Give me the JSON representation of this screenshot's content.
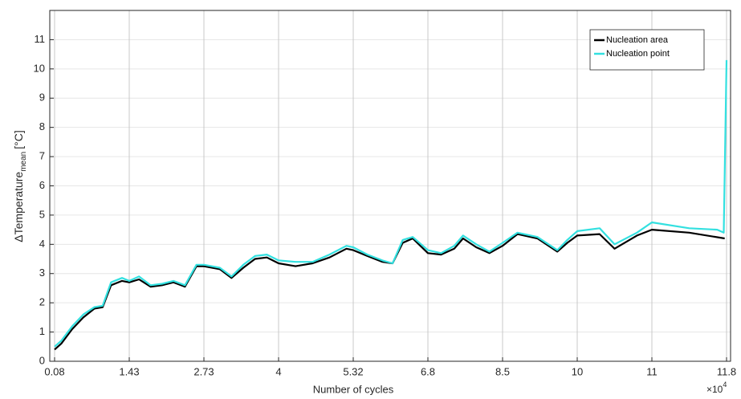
{
  "chart_data": {
    "type": "line",
    "xlabel": "Number of cycles",
    "x_multiplier": {
      "base": "×10",
      "exponent": "4"
    },
    "ylabel": {
      "text": "ΔTemperature",
      "subscript": "mean",
      "unit": "[°C]"
    },
    "xlim": [
      0.08,
      11.8
    ],
    "xticks": [
      0.08,
      1.43,
      2.73,
      4,
      5.32,
      6.8,
      8.5,
      10,
      11,
      11.8
    ],
    "x_scale": "piecewise-even-ticks",
    "ylim": [
      0,
      12
    ],
    "yticks": [
      0,
      1,
      2,
      3,
      4,
      5,
      6,
      7,
      8,
      9,
      10,
      11
    ],
    "grid": true,
    "legend": "upper right",
    "series": [
      {
        "name": "Nucleation area",
        "color": "#000000",
        "x": [
          0.08,
          0.2,
          0.4,
          0.6,
          0.8,
          0.95,
          1.1,
          1.3,
          1.43,
          1.6,
          1.8,
          2.0,
          2.2,
          2.4,
          2.6,
          2.73,
          3.0,
          3.2,
          3.4,
          3.6,
          3.8,
          4.0,
          4.3,
          4.6,
          4.9,
          5.2,
          5.32,
          5.6,
          5.9,
          6.1,
          6.3,
          6.5,
          6.8,
          7.1,
          7.4,
          7.6,
          7.9,
          8.2,
          8.5,
          8.8,
          9.2,
          9.6,
          9.8,
          10.0,
          10.3,
          10.5,
          10.8,
          11.0,
          11.4,
          11.78
        ],
        "values": [
          0.4,
          0.6,
          1.1,
          1.5,
          1.8,
          1.85,
          2.6,
          2.75,
          2.7,
          2.8,
          2.55,
          2.6,
          2.7,
          2.55,
          3.25,
          3.25,
          3.15,
          2.85,
          3.2,
          3.5,
          3.55,
          3.35,
          3.25,
          3.35,
          3.55,
          3.85,
          3.8,
          3.6,
          3.4,
          3.35,
          4.05,
          4.2,
          3.7,
          3.65,
          3.85,
          4.2,
          3.9,
          3.7,
          3.95,
          4.35,
          4.2,
          3.75,
          4.05,
          4.3,
          4.35,
          3.85,
          4.3,
          4.5,
          4.4,
          4.2
        ]
      },
      {
        "name": "Nucleation point",
        "color": "#33e0e0",
        "x": [
          0.08,
          0.2,
          0.4,
          0.6,
          0.8,
          0.95,
          1.1,
          1.3,
          1.43,
          1.6,
          1.8,
          2.0,
          2.2,
          2.4,
          2.6,
          2.73,
          3.0,
          3.2,
          3.4,
          3.6,
          3.8,
          4.0,
          4.3,
          4.6,
          4.9,
          5.2,
          5.32,
          5.6,
          5.9,
          6.1,
          6.3,
          6.5,
          6.8,
          7.1,
          7.4,
          7.6,
          7.9,
          8.2,
          8.5,
          8.8,
          9.2,
          9.6,
          9.8,
          10.0,
          10.3,
          10.5,
          10.8,
          11.0,
          11.4,
          11.7,
          11.77,
          11.8
        ],
        "values": [
          0.5,
          0.7,
          1.2,
          1.6,
          1.85,
          1.9,
          2.7,
          2.85,
          2.75,
          2.9,
          2.6,
          2.65,
          2.75,
          2.6,
          3.3,
          3.3,
          3.2,
          2.9,
          3.3,
          3.6,
          3.65,
          3.45,
          3.4,
          3.4,
          3.65,
          3.95,
          3.9,
          3.65,
          3.45,
          3.35,
          4.15,
          4.25,
          3.8,
          3.7,
          3.95,
          4.3,
          4.0,
          3.75,
          4.05,
          4.4,
          4.25,
          3.8,
          4.15,
          4.45,
          4.55,
          4.0,
          4.4,
          4.75,
          4.55,
          4.5,
          4.4,
          10.3
        ]
      }
    ]
  }
}
